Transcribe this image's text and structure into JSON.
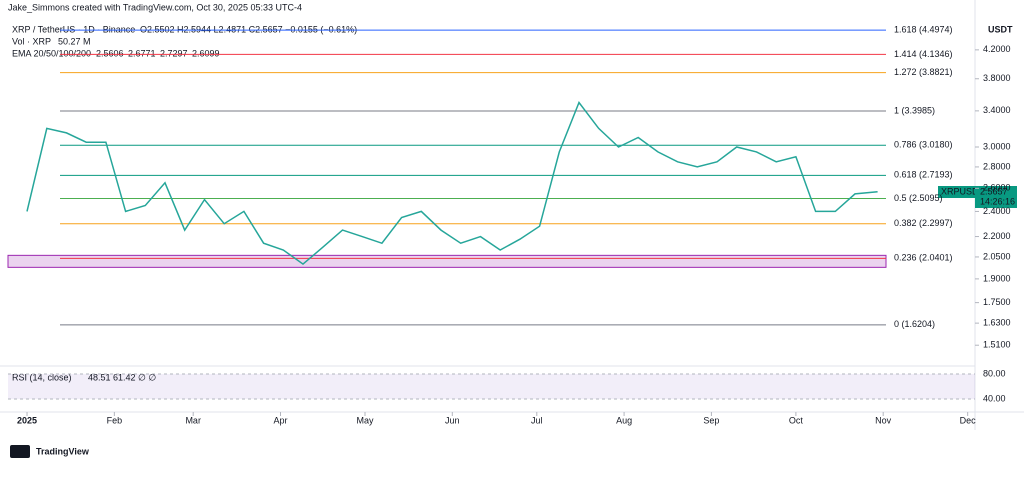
{
  "header": {
    "credit": "Jake_Simmons created with TradingView.com, Oct 30, 2025 05:33 UTC-4",
    "symbol": "XRP / TetherUS · 1D · Binance",
    "ohlc": "O2.5502 H2.5944 L2.4871 C2.5657 −0.0155 (−0.61%)",
    "vol_label": "Vol · XRP",
    "vol_value": "50.27 M",
    "ema_label": "EMA 20/50/100/200",
    "ema_values": [
      {
        "text": "2.5606",
        "color": "#f23645"
      },
      {
        "text": "2.6771",
        "color": "#ff9800"
      },
      {
        "text": "2.7297",
        "color": "#4dd0e1"
      },
      {
        "text": "2.6099",
        "color": "#3f3fd8"
      }
    ]
  },
  "axis_unit": "USDT",
  "price_tag": {
    "symbol": "XRPUSDT",
    "price": "2.5657",
    "countdown": "14:26:16"
  },
  "fib_levels": [
    {
      "label": "1.618 (4.4974)",
      "price": 4.4974,
      "color": "#2962ff"
    },
    {
      "label": "1.414 (4.1346)",
      "price": 4.1346,
      "color": "#f23645"
    },
    {
      "label": "1.272 (3.8821)",
      "price": 3.8821,
      "color": "#f7a21b"
    },
    {
      "label": "1 (3.3985)",
      "price": 3.3985,
      "color": "#787b86"
    },
    {
      "label": "0.786 (3.0180)",
      "price": 3.018,
      "color": "#089981"
    },
    {
      "label": "0.618 (2.7193)",
      "price": 2.7193,
      "color": "#089981"
    },
    {
      "label": "0.5 (2.5095)",
      "price": 2.5095,
      "color": "#4caf50"
    },
    {
      "label": "0.382 (2.2997)",
      "price": 2.2997,
      "color": "#f7a21b"
    },
    {
      "label": "0.236 (2.0401)",
      "price": 2.0401,
      "color": "#f23645"
    },
    {
      "label": "0 (1.6204)",
      "price": 1.6204,
      "color": "#787b86"
    }
  ],
  "rsi": {
    "label": "RSI (14, close)",
    "values_text": "48.51  61.42  ∅  ∅",
    "ticks": [
      {
        "value": 80,
        "label": "80.00"
      },
      {
        "value": 40,
        "label": "40.00"
      }
    ]
  },
  "footer": {
    "brand": "TradingView"
  },
  "chart_data": {
    "type": "line",
    "log_scale": true,
    "color": "#26a69a",
    "x": [
      0,
      7,
      14,
      21,
      28,
      35,
      42,
      49,
      56,
      63,
      70,
      77,
      84,
      91,
      98,
      105,
      112,
      119,
      126,
      133,
      140,
      147,
      154,
      161,
      168,
      175,
      182,
      189,
      196,
      203,
      210,
      217,
      224,
      231,
      238,
      245,
      252,
      259,
      266,
      273,
      280,
      287,
      294,
      302
    ],
    "values": [
      2.4,
      3.2,
      3.15,
      3.05,
      3.05,
      2.4,
      2.45,
      2.65,
      2.25,
      2.5,
      2.3,
      2.4,
      2.15,
      2.1,
      2.0,
      2.12,
      2.25,
      2.2,
      2.15,
      2.35,
      2.4,
      2.25,
      2.15,
      2.2,
      2.1,
      2.18,
      2.28,
      2.95,
      3.5,
      3.2,
      3.0,
      3.1,
      2.95,
      2.85,
      2.8,
      2.85,
      3.0,
      2.95,
      2.85,
      2.9,
      2.4,
      2.4,
      2.55,
      2.57
    ],
    "xlim": [
      -9.6,
      336.6
    ],
    "xticks": [
      {
        "value": 0,
        "label": "2025"
      },
      {
        "value": 31,
        "label": "Feb"
      },
      {
        "value": 59,
        "label": "Mar"
      },
      {
        "value": 90,
        "label": "Apr"
      },
      {
        "value": 120,
        "label": "May"
      },
      {
        "value": 151,
        "label": "Jun"
      },
      {
        "value": 181,
        "label": "Jul"
      },
      {
        "value": 212,
        "label": "Aug"
      },
      {
        "value": 243,
        "label": "Sep"
      },
      {
        "value": 273,
        "label": "Oct"
      },
      {
        "value": 304,
        "label": "Nov"
      },
      {
        "value": 334,
        "label": "Dec"
      }
    ],
    "ylim": [
      1.41,
      4.69
    ],
    "yticks": [
      {
        "value": 4.2,
        "label": "4.2000"
      },
      {
        "value": 3.8,
        "label": "3.8000"
      },
      {
        "value": 3.4,
        "label": "3.4000"
      },
      {
        "value": 3.0,
        "label": "3.0000"
      },
      {
        "value": 2.8,
        "label": "2.8000"
      },
      {
        "value": 2.6,
        "label": "2.6000"
      },
      {
        "value": 2.4,
        "label": "2.4000"
      },
      {
        "value": 2.2,
        "label": "2.2000"
      },
      {
        "value": 2.05,
        "label": "2.0500"
      },
      {
        "value": 1.9,
        "label": "1.9000"
      },
      {
        "value": 1.75,
        "label": "1.7500"
      },
      {
        "value": 1.63,
        "label": "1.6300"
      },
      {
        "value": 1.51,
        "label": "1.5100"
      }
    ]
  }
}
